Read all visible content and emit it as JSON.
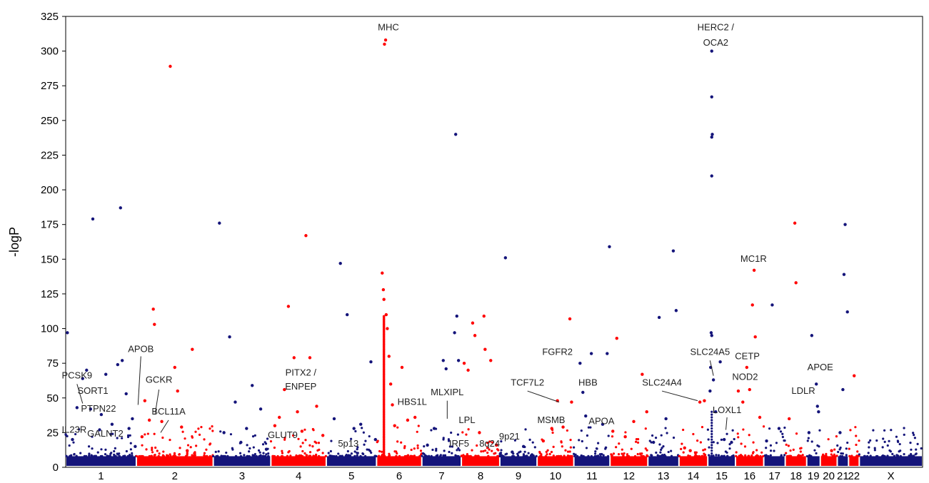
{
  "chart_data": {
    "type": "scatter",
    "title": "",
    "xlabel": "",
    "ylabel": "-logP",
    "ylim": [
      0,
      325
    ],
    "yticks": [
      "0",
      "25",
      "50",
      "75",
      "100",
      "125",
      "150",
      "175",
      "200",
      "225",
      "250",
      "275",
      "300",
      "325"
    ],
    "grid": false,
    "legend": "none",
    "colors": {
      "odd": "#14147a",
      "even": "#ff0000"
    },
    "chromosomes": [
      {
        "label": "1",
        "start": 0,
        "end": 125,
        "color": "odd"
      },
      {
        "label": "2",
        "start": 125,
        "end": 261,
        "color": "even"
      },
      {
        "label": "3",
        "start": 261,
        "end": 363,
        "color": "odd"
      },
      {
        "label": "4",
        "start": 363,
        "end": 461,
        "color": "even"
      },
      {
        "label": "5",
        "start": 461,
        "end": 550,
        "color": "odd"
      },
      {
        "label": "6",
        "start": 550,
        "end": 630,
        "color": "even"
      },
      {
        "label": "7",
        "start": 630,
        "end": 700,
        "color": "odd"
      },
      {
        "label": "8",
        "start": 700,
        "end": 768,
        "color": "even"
      },
      {
        "label": "9",
        "start": 768,
        "end": 834,
        "color": "odd"
      },
      {
        "label": "10",
        "start": 834,
        "end": 899,
        "color": "even"
      },
      {
        "label": "11",
        "start": 899,
        "end": 963,
        "color": "odd"
      },
      {
        "label": "12",
        "start": 963,
        "end": 1030,
        "color": "even"
      },
      {
        "label": "13",
        "start": 1030,
        "end": 1085,
        "color": "odd"
      },
      {
        "label": "14",
        "start": 1085,
        "end": 1136,
        "color": "even"
      },
      {
        "label": "15",
        "start": 1136,
        "end": 1185,
        "color": "odd"
      },
      {
        "label": "16",
        "start": 1185,
        "end": 1235,
        "color": "even"
      },
      {
        "label": "17",
        "start": 1235,
        "end": 1273,
        "color": "odd"
      },
      {
        "label": "18",
        "start": 1273,
        "end": 1311,
        "color": "even"
      },
      {
        "label": "19",
        "start": 1311,
        "end": 1335,
        "color": "odd"
      },
      {
        "label": "20",
        "start": 1335,
        "end": 1365,
        "color": "even"
      },
      {
        "label": "21",
        "start": 1365,
        "end": 1385,
        "color": "odd"
      },
      {
        "label": "22",
        "start": 1385,
        "end": 1404,
        "color": "even"
      },
      {
        "label": "X",
        "start": 1404,
        "end": 1516,
        "color": "odd"
      }
    ],
    "points": [
      [
        3,
        97
      ],
      [
        12,
        20
      ],
      [
        20,
        43
      ],
      [
        30,
        64
      ],
      [
        37,
        70
      ],
      [
        44,
        42
      ],
      [
        48,
        179
      ],
      [
        60,
        27
      ],
      [
        63,
        38
      ],
      [
        71,
        67
      ],
      [
        82,
        31
      ],
      [
        92,
        74
      ],
      [
        97,
        187
      ],
      [
        100,
        77
      ],
      [
        107,
        53
      ],
      [
        112,
        28
      ],
      [
        118,
        35
      ],
      [
        123,
        15
      ],
      [
        135,
        22
      ],
      [
        140,
        48
      ],
      [
        148,
        34
      ],
      [
        155,
        114
      ],
      [
        157,
        103
      ],
      [
        170,
        33
      ],
      [
        185,
        289
      ],
      [
        193,
        72
      ],
      [
        198,
        55
      ],
      [
        205,
        29
      ],
      [
        215,
        12
      ],
      [
        224,
        85
      ],
      [
        228,
        10
      ],
      [
        272,
        176
      ],
      [
        280,
        25
      ],
      [
        290,
        94
      ],
      [
        300,
        47
      ],
      [
        310,
        18
      ],
      [
        320,
        28
      ],
      [
        330,
        59
      ],
      [
        345,
        42
      ],
      [
        355,
        13
      ],
      [
        370,
        30
      ],
      [
        378,
        36
      ],
      [
        387,
        56
      ],
      [
        394,
        116
      ],
      [
        404,
        79
      ],
      [
        410,
        40
      ],
      [
        418,
        26
      ],
      [
        425,
        167
      ],
      [
        432,
        79
      ],
      [
        444,
        44
      ],
      [
        455,
        23
      ],
      [
        475,
        35
      ],
      [
        486,
        147
      ],
      [
        498,
        110
      ],
      [
        510,
        28
      ],
      [
        522,
        31
      ],
      [
        540,
        76
      ],
      [
        548,
        20
      ],
      [
        560,
        140
      ],
      [
        562,
        128
      ],
      [
        563,
        121
      ],
      [
        564,
        305
      ],
      [
        566,
        308
      ],
      [
        567,
        110
      ],
      [
        569,
        100
      ],
      [
        572,
        80
      ],
      [
        575,
        60
      ],
      [
        578,
        45
      ],
      [
        582,
        30
      ],
      [
        595,
        72
      ],
      [
        605,
        34
      ],
      [
        618,
        36
      ],
      [
        640,
        16
      ],
      [
        652,
        28
      ],
      [
        668,
        77
      ],
      [
        673,
        71
      ],
      [
        688,
        97
      ],
      [
        690,
        240
      ],
      [
        692,
        109
      ],
      [
        695,
        77
      ],
      [
        705,
        75
      ],
      [
        712,
        70
      ],
      [
        720,
        104
      ],
      [
        724,
        95
      ],
      [
        732,
        25
      ],
      [
        740,
        109
      ],
      [
        742,
        85
      ],
      [
        752,
        77
      ],
      [
        762,
        16
      ],
      [
        778,
        151
      ],
      [
        790,
        11
      ],
      [
        810,
        15
      ],
      [
        825,
        9
      ],
      [
        845,
        19
      ],
      [
        860,
        28
      ],
      [
        870,
        48
      ],
      [
        880,
        29
      ],
      [
        892,
        107
      ],
      [
        895,
        47
      ],
      [
        910,
        75
      ],
      [
        915,
        54
      ],
      [
        920,
        37
      ],
      [
        930,
        82
      ],
      [
        950,
        31
      ],
      [
        958,
        82
      ],
      [
        962,
        159
      ],
      [
        968,
        26
      ],
      [
        975,
        93
      ],
      [
        990,
        22
      ],
      [
        1005,
        33
      ],
      [
        1020,
        67
      ],
      [
        1028,
        40
      ],
      [
        1040,
        18
      ],
      [
        1050,
        108
      ],
      [
        1062,
        35
      ],
      [
        1075,
        156
      ],
      [
        1080,
        113
      ],
      [
        1095,
        14
      ],
      [
        1105,
        12
      ],
      [
        1122,
        47
      ],
      [
        1130,
        48
      ],
      [
        1140,
        55
      ],
      [
        1141,
        72
      ],
      [
        1142,
        97
      ],
      [
        1143,
        95
      ],
      [
        1143,
        210
      ],
      [
        1143,
        238
      ],
      [
        1144,
        240
      ],
      [
        1143,
        267
      ],
      [
        1143,
        300
      ],
      [
        1146,
        63
      ],
      [
        1150,
        40
      ],
      [
        1158,
        76
      ],
      [
        1165,
        20
      ],
      [
        1178,
        18
      ],
      [
        1190,
        55
      ],
      [
        1198,
        47
      ],
      [
        1205,
        72
      ],
      [
        1210,
        56
      ],
      [
        1215,
        117
      ],
      [
        1218,
        142
      ],
      [
        1220,
        94
      ],
      [
        1228,
        36
      ],
      [
        1240,
        19
      ],
      [
        1250,
        117
      ],
      [
        1262,
        28
      ],
      [
        1280,
        35
      ],
      [
        1290,
        176
      ],
      [
        1292,
        133
      ],
      [
        1300,
        8
      ],
      [
        1315,
        25
      ],
      [
        1320,
        95
      ],
      [
        1328,
        60
      ],
      [
        1330,
        44
      ],
      [
        1332,
        40
      ],
      [
        1345,
        8
      ],
      [
        1355,
        12
      ],
      [
        1370,
        25
      ],
      [
        1375,
        56
      ],
      [
        1377,
        139
      ],
      [
        1379,
        175
      ],
      [
        1383,
        112
      ],
      [
        1395,
        66
      ],
      [
        1400,
        8
      ],
      [
        1450,
        7
      ],
      [
        1490,
        5
      ]
    ],
    "annotations": [
      {
        "text": "PCSK9",
        "x": 20,
        "y": 64
      },
      {
        "text": "SORT1",
        "x": 48,
        "y": 53
      },
      {
        "text": "PTPN22",
        "x": 58,
        "y": 40
      },
      {
        "text": "IL23R",
        "x": 15,
        "y": 25
      },
      {
        "text": "GALNT2",
        "x": 70,
        "y": 22
      },
      {
        "text": "APOB",
        "x": 133,
        "y": 83
      },
      {
        "text": "GCKR",
        "x": 165,
        "y": 61
      },
      {
        "text": "BCL11A",
        "x": 182,
        "y": 38
      },
      {
        "text": "PITX2 /",
        "x": 416,
        "y": 66
      },
      {
        "text": "ENPEP",
        "x": 416,
        "y": 56
      },
      {
        "text": "GLUT9",
        "x": 384,
        "y": 21
      },
      {
        "text": "5p13",
        "x": 500,
        "y": 15
      },
      {
        "text": "MHC",
        "x": 571,
        "y": 315
      },
      {
        "text": "HBS1L",
        "x": 613,
        "y": 45
      },
      {
        "text": "MLXIPL",
        "x": 675,
        "y": 52
      },
      {
        "text": "IRF5",
        "x": 696,
        "y": 15
      },
      {
        "text": "LPL",
        "x": 710,
        "y": 32
      },
      {
        "text": "8q24",
        "x": 750,
        "y": 15
      },
      {
        "text": "9p21",
        "x": 785,
        "y": 20
      },
      {
        "text": "TCF7L2",
        "x": 817,
        "y": 59
      },
      {
        "text": "FGFR2",
        "x": 870,
        "y": 81
      },
      {
        "text": "HBB",
        "x": 924,
        "y": 59
      },
      {
        "text": "MSMB",
        "x": 859,
        "y": 32
      },
      {
        "text": "APOA",
        "x": 948,
        "y": 31
      },
      {
        "text": "HERC2 /",
        "x": 1150,
        "y": 315
      },
      {
        "text": "OCA2",
        "x": 1150,
        "y": 304
      },
      {
        "text": "MC1R",
        "x": 1217,
        "y": 148
      },
      {
        "text": "SLC24A5",
        "x": 1140,
        "y": 81
      },
      {
        "text": "CETP",
        "x": 1206,
        "y": 78
      },
      {
        "text": "SLC24A4",
        "x": 1055,
        "y": 59
      },
      {
        "text": "NOD2",
        "x": 1202,
        "y": 63
      },
      {
        "text": "LOXL1",
        "x": 1170,
        "y": 39
      },
      {
        "text": "APOE",
        "x": 1335,
        "y": 70
      },
      {
        "text": "LDLR",
        "x": 1305,
        "y": 53
      }
    ]
  }
}
